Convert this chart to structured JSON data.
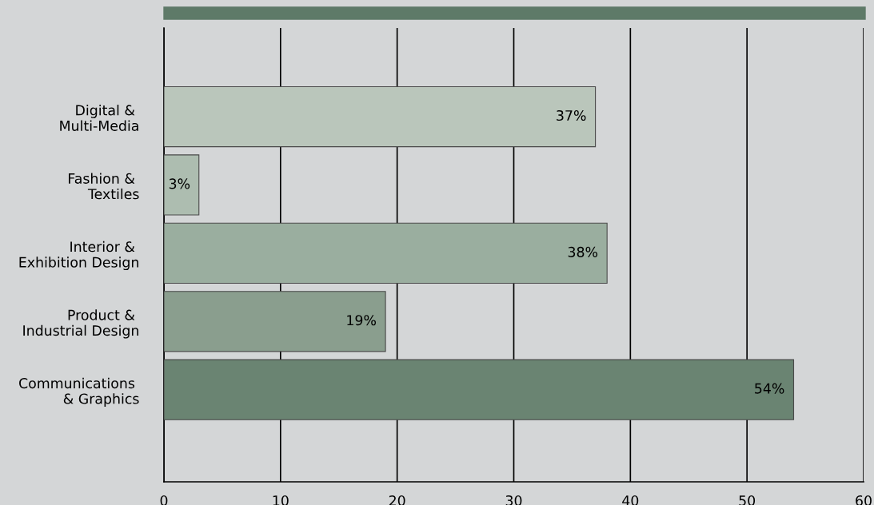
{
  "chart_data": {
    "type": "bar",
    "orientation": "horizontal",
    "categories": [
      "Digital & \nMulti-Media",
      "Fashion & \nTextiles",
      "Interior & \nExhibition Design",
      "Product & \nIndustrial Design",
      "Communications \n& Graphics"
    ],
    "values": [
      37,
      3,
      38,
      19,
      54
    ],
    "colors": [
      "#bac6bb",
      "#adbdb0",
      "#9aae9f",
      "#8a9e8e",
      "#6a8472"
    ],
    "value_labels": [
      "37%",
      "3%",
      "38%",
      "19%",
      "54%"
    ],
    "xlim": [
      0,
      60
    ],
    "xticks": [
      0,
      10,
      20,
      30,
      40,
      50,
      60
    ],
    "grid": "x"
  }
}
